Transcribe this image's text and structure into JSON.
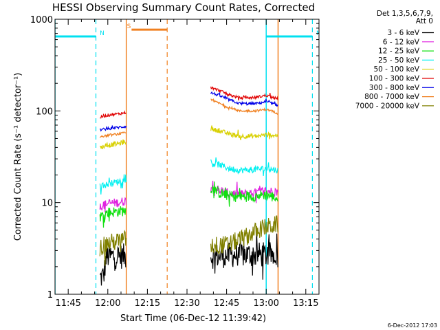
{
  "chart_data": {
    "type": "line",
    "title": "HESSI Observing Summary Count Rates, Corrected",
    "xlabel": "Start Time (06-Dec-12 11:39:42)",
    "ylabel": "Corrected Count Rate (s⁻¹ detector⁻¹)",
    "yscale": "log",
    "xlim_minutes_after_1140": [
      0,
      100
    ],
    "ylim": [
      1,
      1000
    ],
    "x_ticks": [
      "11:45",
      "12:00",
      "12:15",
      "12:30",
      "12:45",
      "13:00",
      "13:15"
    ],
    "x_tick_minutes": [
      5,
      20,
      35,
      50,
      65,
      80,
      95
    ],
    "y_ticks": [
      "1",
      "10",
      "100",
      "1000"
    ],
    "y_tick_values": [
      1,
      10,
      100,
      1000
    ],
    "legend_header": [
      "Det 1,3,5,6,7,9,",
      "Att 0"
    ],
    "date_stamp": "6-Dec-2012 17:03",
    "segments_minutes": [
      [
        17.0,
        27.0
      ],
      [
        59.0,
        84.5
      ]
    ],
    "series": [
      {
        "name": "3 - 6 keV",
        "color": "#000000",
        "noise": 0.14,
        "seg1": [
          [
            17.0,
            1.5
          ],
          [
            18.5,
            1.6
          ],
          [
            19.5,
            2.6
          ],
          [
            27.0,
            2.6
          ]
        ],
        "seg2": [
          [
            59.0,
            2.6
          ],
          [
            68.0,
            2.7
          ],
          [
            76.0,
            2.7
          ],
          [
            84.5,
            2.7
          ]
        ]
      },
      {
        "name": "6 - 12 keV",
        "color": "#e020e0",
        "noise": 0.05,
        "seg1": [
          [
            17.0,
            9.0
          ],
          [
            20.0,
            9.8
          ],
          [
            24.0,
            10.0
          ],
          [
            27.0,
            10.5
          ]
        ],
        "seg2": [
          [
            59.0,
            15.0
          ],
          [
            62.0,
            13.8
          ],
          [
            66.0,
            12.5
          ],
          [
            70.0,
            12.3
          ],
          [
            76.0,
            12.8
          ],
          [
            80.0,
            13.5
          ],
          [
            84.5,
            13.0
          ]
        ]
      },
      {
        "name": "12 - 25 keV",
        "color": "#10e010",
        "noise": 0.06,
        "seg1": [
          [
            17.0,
            7.0
          ],
          [
            20.0,
            7.8
          ],
          [
            24.0,
            8.0
          ],
          [
            27.0,
            8.2
          ]
        ],
        "seg2": [
          [
            59.0,
            14.5
          ],
          [
            62.0,
            12.8
          ],
          [
            66.0,
            11.8
          ],
          [
            70.0,
            11.5
          ],
          [
            76.0,
            11.8
          ],
          [
            80.0,
            12.2
          ],
          [
            84.5,
            11.0
          ]
        ]
      },
      {
        "name": "25 - 50 keV",
        "color": "#00f0f0",
        "noise": 0.035,
        "seg1": [
          [
            17.0,
            15.0
          ],
          [
            20.0,
            15.8
          ],
          [
            24.0,
            17.0
          ],
          [
            27.0,
            18.0
          ]
        ],
        "seg2": [
          [
            59.0,
            27.0
          ],
          [
            62.0,
            26.0
          ],
          [
            66.0,
            23.5
          ],
          [
            70.0,
            22.5
          ],
          [
            76.0,
            23.0
          ],
          [
            80.0,
            23.5
          ],
          [
            84.5,
            22.5
          ]
        ]
      },
      {
        "name": "50 - 100 keV",
        "color": "#d8d000",
        "noise": 0.025,
        "seg1": [
          [
            17.0,
            40.0
          ],
          [
            20.0,
            42.0
          ],
          [
            24.0,
            44.0
          ],
          [
            27.0,
            46.0
          ]
        ],
        "seg2": [
          [
            59.0,
            63.0
          ],
          [
            62.0,
            61.0
          ],
          [
            66.0,
            56.0
          ],
          [
            70.0,
            53.0
          ],
          [
            76.0,
            53.0
          ],
          [
            80.0,
            55.0
          ],
          [
            84.5,
            54.0
          ]
        ]
      },
      {
        "name": "100 - 300 keV",
        "color": "#e00000",
        "noise": 0.015,
        "seg1": [
          [
            17.0,
            85.0
          ],
          [
            20.0,
            90.0
          ],
          [
            24.0,
            93.0
          ],
          [
            27.0,
            96.0
          ]
        ],
        "seg2": [
          [
            59.0,
            180.0
          ],
          [
            62.0,
            168.0
          ],
          [
            66.0,
            150.0
          ],
          [
            70.0,
            138.0
          ],
          [
            76.0,
            140.0
          ],
          [
            80.0,
            148.0
          ],
          [
            84.5,
            135.0
          ]
        ]
      },
      {
        "name": "300 - 800 keV",
        "color": "#0000e8",
        "noise": 0.015,
        "seg1": [
          [
            17.0,
            62.0
          ],
          [
            20.0,
            64.0
          ],
          [
            24.0,
            66.0
          ],
          [
            27.0,
            68.0
          ]
        ],
        "seg2": [
          [
            59.0,
            158.0
          ],
          [
            62.0,
            148.0
          ],
          [
            66.0,
            132.0
          ],
          [
            70.0,
            120.0
          ],
          [
            76.0,
            120.0
          ],
          [
            80.0,
            126.0
          ],
          [
            84.5,
            115.0
          ]
        ]
      },
      {
        "name": "800 - 7000 keV",
        "color": "#f08020",
        "noise": 0.012,
        "seg1": [
          [
            17.0,
            52.0
          ],
          [
            20.0,
            54.0
          ],
          [
            24.0,
            56.0
          ],
          [
            27.0,
            58.0
          ]
        ],
        "seg2": [
          [
            59.0,
            132.0
          ],
          [
            62.0,
            122.0
          ],
          [
            66.0,
            108.0
          ],
          [
            70.0,
            100.0
          ],
          [
            76.0,
            100.0
          ],
          [
            80.0,
            104.0
          ],
          [
            84.5,
            94.0
          ]
        ]
      },
      {
        "name": "7000 - 20000 keV",
        "color": "#808000",
        "noise": 0.1,
        "seg1": [
          [
            17.0,
            3.2
          ],
          [
            20.0,
            3.6
          ],
          [
            24.0,
            3.8
          ],
          [
            27.0,
            4.0
          ]
        ],
        "seg2": [
          [
            59.0,
            3.4
          ],
          [
            66.0,
            3.5
          ],
          [
            72.0,
            4.2
          ],
          [
            78.0,
            5.2
          ],
          [
            84.5,
            5.8
          ]
        ]
      }
    ],
    "annotations": [
      {
        "label": "N",
        "color": "#00e0f0",
        "bar_minutes": [
          0,
          15.5
        ],
        "bar_y": 650,
        "dashed_at": 15.5
      },
      {
        "label": "N",
        "color": "#00e0f0",
        "bar_minutes": [
          80.0,
          97.5
        ],
        "bar_y": 650,
        "solid_at": 80.0,
        "dashed_at": 97.5
      },
      {
        "label": "S",
        "color": "#f08020",
        "bar_minutes": [
          29.0,
          42.5
        ],
        "bar_y": 770,
        "solid_at": 27.0,
        "dashed_at": 42.5
      }
    ],
    "extra_vertical_lines": [
      {
        "color": "#00e0f0",
        "style": "solid",
        "minute": 0
      },
      {
        "color": "#f08020",
        "style": "solid",
        "minute": 84.5
      }
    ]
  }
}
